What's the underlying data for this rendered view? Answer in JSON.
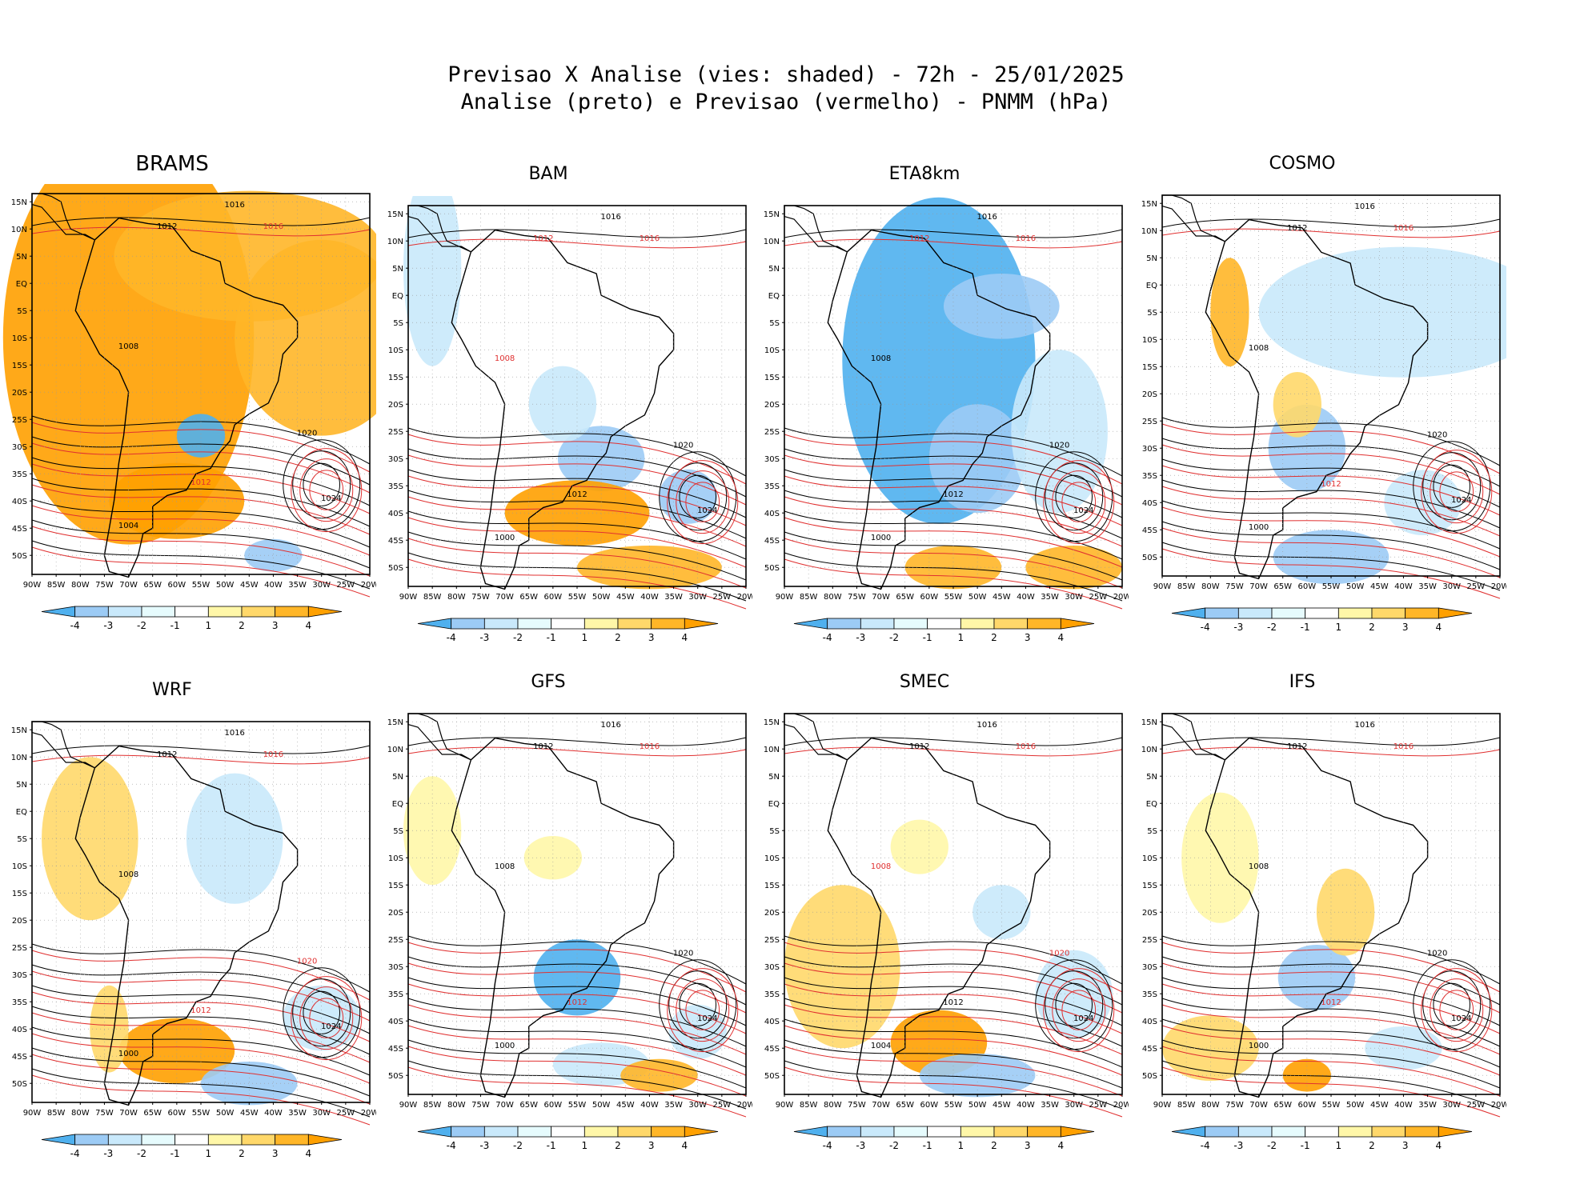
{
  "title": {
    "line1": "Previsao X Analise (vies: shaded) - 72h - 25/01/2025",
    "line2": "Analise (preto) e Previsao (vermelho) - PNMM (hPa)"
  },
  "axes": {
    "lat_labels": [
      "15N",
      "10N",
      "5N",
      "EQ",
      "5S",
      "10S",
      "15S",
      "20S",
      "25S",
      "30S",
      "35S",
      "40S",
      "45S",
      "50S"
    ],
    "lon_labels": [
      "90W",
      "85W",
      "80W",
      "75W",
      "70W",
      "65W",
      "60W",
      "55W",
      "50W",
      "45W",
      "40W",
      "35W",
      "30W",
      "25W",
      "20W"
    ]
  },
  "colorbar": {
    "labels": [
      "-4",
      "-3",
      "-2",
      "-1",
      "1",
      "2",
      "3",
      "4"
    ],
    "colors": [
      "#4fb0ee",
      "#9ccbf5",
      "#c9e9fb",
      "#e6fbfd",
      "#ffffff",
      "#fff7a8",
      "#ffd86a",
      "#ffb628",
      "#ffa000"
    ]
  },
  "colors": {
    "analysis_contour": "#000000",
    "forecast_contour": "#e03030",
    "warm_bias": "#ffb628",
    "cold_bias": "#4fb0ee"
  },
  "panels": [
    {
      "name": "BRAMS",
      "labels": [
        {
          "t": "1016",
          "c": "k"
        },
        {
          "t": "1012",
          "c": "k"
        },
        {
          "t": "1016",
          "c": "r"
        },
        {
          "t": "1008",
          "c": "k"
        },
        {
          "t": "1020",
          "c": "k"
        },
        {
          "t": "1024",
          "c": "k"
        },
        {
          "t": "1012",
          "c": "r"
        },
        {
          "t": "1004",
          "c": "k"
        }
      ]
    },
    {
      "name": "BAM",
      "labels": [
        {
          "t": "1016",
          "c": "k"
        },
        {
          "t": "1012",
          "c": "r"
        },
        {
          "t": "1016",
          "c": "r"
        },
        {
          "t": "1008",
          "c": "r"
        },
        {
          "t": "1020",
          "c": "k"
        },
        {
          "t": "1024",
          "c": "k"
        },
        {
          "t": "1012",
          "c": "k"
        },
        {
          "t": "1000",
          "c": "k"
        }
      ]
    },
    {
      "name": "ETA8km",
      "labels": [
        {
          "t": "1016",
          "c": "k"
        },
        {
          "t": "1012",
          "c": "r"
        },
        {
          "t": "1016",
          "c": "r"
        },
        {
          "t": "1008",
          "c": "k"
        },
        {
          "t": "1020",
          "c": "k"
        },
        {
          "t": "1024",
          "c": "k"
        },
        {
          "t": "1012",
          "c": "k"
        },
        {
          "t": "1000",
          "c": "k"
        }
      ]
    },
    {
      "name": "COSMO",
      "labels": [
        {
          "t": "1016",
          "c": "k"
        },
        {
          "t": "1012",
          "c": "k"
        },
        {
          "t": "1016",
          "c": "r"
        },
        {
          "t": "1008",
          "c": "k"
        },
        {
          "t": "1020",
          "c": "k"
        },
        {
          "t": "1024",
          "c": "k"
        },
        {
          "t": "1012",
          "c": "r"
        },
        {
          "t": "1000",
          "c": "k"
        }
      ]
    },
    {
      "name": "WRF",
      "labels": [
        {
          "t": "1016",
          "c": "k"
        },
        {
          "t": "1012",
          "c": "k"
        },
        {
          "t": "1016",
          "c": "r"
        },
        {
          "t": "1008",
          "c": "k"
        },
        {
          "t": "1020",
          "c": "r"
        },
        {
          "t": "1024",
          "c": "k"
        },
        {
          "t": "1012",
          "c": "r"
        },
        {
          "t": "1000",
          "c": "k"
        }
      ]
    },
    {
      "name": "GFS",
      "labels": [
        {
          "t": "1016",
          "c": "k"
        },
        {
          "t": "1012",
          "c": "k"
        },
        {
          "t": "1016",
          "c": "r"
        },
        {
          "t": "1008",
          "c": "k"
        },
        {
          "t": "1020",
          "c": "k"
        },
        {
          "t": "1024",
          "c": "k"
        },
        {
          "t": "1012",
          "c": "r"
        },
        {
          "t": "1000",
          "c": "k"
        }
      ]
    },
    {
      "name": "SMEC",
      "labels": [
        {
          "t": "1016",
          "c": "k"
        },
        {
          "t": "1012",
          "c": "k"
        },
        {
          "t": "1016",
          "c": "r"
        },
        {
          "t": "1008",
          "c": "r"
        },
        {
          "t": "1020",
          "c": "r"
        },
        {
          "t": "1024",
          "c": "k"
        },
        {
          "t": "1012",
          "c": "k"
        },
        {
          "t": "1004",
          "c": "k"
        }
      ]
    },
    {
      "name": "IFS",
      "labels": [
        {
          "t": "1016",
          "c": "k"
        },
        {
          "t": "1012",
          "c": "k"
        },
        {
          "t": "1016",
          "c": "r"
        },
        {
          "t": "1008",
          "c": "k"
        },
        {
          "t": "1020",
          "c": "k"
        },
        {
          "t": "1024",
          "c": "k"
        },
        {
          "t": "1012",
          "c": "r"
        },
        {
          "t": "1000",
          "c": "k"
        }
      ]
    }
  ]
}
